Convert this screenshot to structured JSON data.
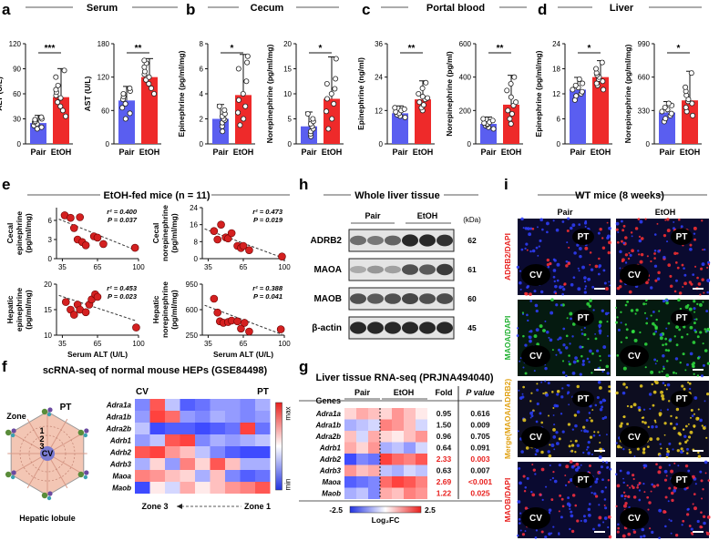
{
  "colors": {
    "pair": "#5a5ef0",
    "etoh": "#ee2a2a",
    "dot": "#d42020"
  },
  "panels": {
    "a": {
      "letter": "a",
      "title": "Serum"
    },
    "b": {
      "letter": "b",
      "title": "Cecum"
    },
    "c": {
      "letter": "c",
      "title": "Portal blood"
    },
    "d": {
      "letter": "d",
      "title": "Liver"
    },
    "e": {
      "letter": "e",
      "title": "EtOH-fed mice (n = 11)"
    },
    "f": {
      "letter": "f",
      "title": "scRNA-seq of normal mouse HEPs (GSE84498)",
      "lobule_label": "Hepatic lobule",
      "zone_label": "Zone",
      "pt": "PT",
      "cv": "CV",
      "zone_nums": [
        "1",
        "2",
        "3"
      ],
      "zone3": "Zone 3",
      "zone1": "Zone 1",
      "max": "max",
      "min": "min"
    },
    "g": {
      "letter": "g",
      "title": "Liver tissue RNA-seq (PRJNA494040)",
      "h_genes": "Genes",
      "h_pair": "Pair",
      "h_etoh": "EtOH",
      "h_fold": "Fold",
      "h_p": "P value",
      "cb_min": "-2.5",
      "cb_max": "2.5",
      "cb_label": "Log₂FC"
    },
    "h": {
      "letter": "h",
      "title": "Whole liver tissue",
      "pair": "Pair",
      "etoh": "EtOH",
      "kda": "(kDa)"
    },
    "i": {
      "letter": "i",
      "title": "WT mice (8 weeks)",
      "pair": "Pair",
      "etoh": "EtOH",
      "pt": "PT",
      "cv": "CV"
    }
  },
  "chart_data": [
    {
      "id": "a1",
      "type": "bar",
      "categories": [
        "Pair",
        "EtOH"
      ],
      "values": [
        25,
        56
      ],
      "ylabel": "ALT (U/L)",
      "ylim": [
        0,
        120
      ],
      "yticks": [
        0,
        30,
        60,
        90,
        120
      ],
      "sig": "***",
      "points": [
        [
          18,
          20,
          22,
          24,
          26,
          27,
          29,
          30,
          32
        ],
        [
          33,
          40,
          45,
          50,
          55,
          58,
          62,
          65,
          70,
          80,
          88
        ]
      ]
    },
    {
      "id": "a2",
      "type": "bar",
      "categories": [
        "Pair",
        "EtOH"
      ],
      "values": [
        78,
        120
      ],
      "ylabel": "AST (U/L)",
      "ylim": [
        0,
        180
      ],
      "yticks": [
        0,
        60,
        120,
        180
      ],
      "sig": "**",
      "points": [
        [
          45,
          55,
          65,
          72,
          80,
          85,
          90,
          95,
          100
        ],
        [
          90,
          100,
          108,
          115,
          120,
          125,
          130,
          138,
          145,
          150
        ]
      ]
    },
    {
      "id": "b1",
      "type": "bar",
      "categories": [
        "Pair",
        "EtOH"
      ],
      "values": [
        2.0,
        3.9
      ],
      "ylabel": "Epinephrine (pg/ml/mg)",
      "ylim": [
        0,
        8
      ],
      "yticks": [
        0,
        2,
        4,
        6,
        8
      ],
      "sig": "*",
      "points": [
        [
          1.0,
          1.4,
          1.7,
          1.9,
          2.0,
          2.2,
          2.4,
          2.7,
          3.0
        ],
        [
          1.5,
          2.0,
          2.5,
          3.0,
          3.5,
          4.0,
          5.0,
          6.0,
          6.5,
          7.0
        ]
      ]
    },
    {
      "id": "b2",
      "type": "bar",
      "categories": [
        "Pair",
        "EtOH"
      ],
      "values": [
        3.5,
        9.0
      ],
      "ylabel": "Norepinephrine (pg/ml/mg)",
      "ylim": [
        0,
        20
      ],
      "yticks": [
        0,
        5,
        10,
        15,
        20
      ],
      "sig": "*",
      "points": [
        [
          1.5,
          2.0,
          2.5,
          3.0,
          3.5,
          4.0,
          4.5,
          5.0,
          6.0
        ],
        [
          3.0,
          5.0,
          6.5,
          8.0,
          9.0,
          10.0,
          11.0,
          12.0,
          13.0,
          17.0
        ]
      ]
    },
    {
      "id": "c1",
      "type": "bar",
      "categories": [
        "Pair",
        "EtOH"
      ],
      "values": [
        11,
        16
      ],
      "ylabel": "Epinephrine (ng/ml)",
      "ylim": [
        0,
        36
      ],
      "yticks": [
        0,
        12,
        24,
        36
      ],
      "sig": "**",
      "points": [
        [
          9.5,
          10,
          10.5,
          11,
          11,
          11.5,
          12,
          12.5,
          13
        ],
        [
          12,
          13,
          14,
          15,
          16,
          16.5,
          17,
          18,
          20,
          22
        ]
      ]
    },
    {
      "id": "c2",
      "type": "bar",
      "categories": [
        "Pair",
        "EtOH"
      ],
      "values": [
        120,
        235
      ],
      "ylabel": "Norepinephrine (pg/ml)",
      "ylim": [
        0,
        600
      ],
      "yticks": [
        0,
        200,
        400,
        600
      ],
      "sig": "**",
      "points": [
        [
          90,
          100,
          110,
          115,
          120,
          125,
          130,
          140,
          150
        ],
        [
          120,
          150,
          180,
          200,
          230,
          250,
          280,
          320,
          360,
          400
        ]
      ]
    },
    {
      "id": "d1",
      "type": "bar",
      "categories": [
        "Pair",
        "EtOH"
      ],
      "values": [
        13,
        16
      ],
      "ylabel": "Epinephrine (pg/ml/mg)",
      "ylim": [
        0,
        24
      ],
      "yticks": [
        0,
        6,
        12,
        18,
        24
      ],
      "sig": "*",
      "points": [
        [
          10.5,
          11.5,
          12,
          12.5,
          13,
          13.5,
          14,
          14.5,
          15.5
        ],
        [
          13,
          14,
          14.5,
          15,
          15.5,
          16,
          16.5,
          17,
          18,
          19.5
        ]
      ]
    },
    {
      "id": "d2",
      "type": "bar",
      "categories": [
        "Pair",
        "EtOH"
      ],
      "values": [
        310,
        430
      ],
      "ylabel": "Norepinephrine (pg/ml/mg)",
      "ylim": [
        0,
        990
      ],
      "yticks": [
        0,
        330,
        660,
        990
      ],
      "sig": "*",
      "points": [
        [
          220,
          250,
          280,
          300,
          320,
          340,
          360,
          380,
          400
        ],
        [
          280,
          320,
          360,
          400,
          420,
          440,
          480,
          520,
          560,
          700
        ]
      ]
    },
    {
      "id": "e1",
      "type": "scatter",
      "ylabel": "Cecal epinephrine (pg/ml/mg)",
      "xlim": [
        30,
        100
      ],
      "ylim": [
        0,
        8
      ],
      "xticks": [
        35,
        65,
        100
      ],
      "yticks": [
        0,
        3,
        6
      ],
      "stat_r": "r² = 0.400",
      "stat_p": "P = 0.037",
      "points": [
        [
          37,
          6.8
        ],
        [
          42,
          6.4
        ],
        [
          45,
          4.8
        ],
        [
          48,
          3.0
        ],
        [
          50,
          6.5
        ],
        [
          52,
          2.6
        ],
        [
          55,
          2.1
        ],
        [
          62,
          3.5
        ],
        [
          65,
          3.3
        ],
        [
          70,
          2.3
        ],
        [
          97,
          1.7
        ]
      ],
      "fit": [
        [
          32,
          6.2
        ],
        [
          98,
          1.3
        ]
      ]
    },
    {
      "id": "e2",
      "type": "scatter",
      "ylabel": "Cecal norepinephrine (pg/ml/mg)",
      "xlim": [
        30,
        100
      ],
      "ylim": [
        0,
        24
      ],
      "xticks": [
        35,
        65,
        100
      ],
      "yticks": [
        0,
        8,
        16,
        24
      ],
      "stat_r": "r² = 0.473",
      "stat_p": "P = 0.019",
      "points": [
        [
          40,
          13
        ],
        [
          43,
          9
        ],
        [
          46,
          16
        ],
        [
          50,
          10
        ],
        [
          52,
          9.5
        ],
        [
          55,
          12
        ],
        [
          60,
          6
        ],
        [
          63,
          5
        ],
        [
          65,
          6
        ],
        [
          70,
          4
        ],
        [
          98,
          1
        ]
      ],
      "fit": [
        [
          32,
          14
        ],
        [
          98,
          0.5
        ]
      ]
    },
    {
      "id": "e3",
      "type": "scatter",
      "xlabel": "Serum ALT (U/L)",
      "ylabel": "Hepatic epinephrine (pg/ml/mg)",
      "xlim": [
        30,
        100
      ],
      "ylim": [
        10,
        20
      ],
      "xticks": [
        35,
        65,
        100
      ],
      "yticks": [
        10,
        15,
        20
      ],
      "stat_r": "r² = 0.453",
      "stat_p": "P = 0.023",
      "points": [
        [
          38,
          16.5
        ],
        [
          42,
          15.0
        ],
        [
          45,
          14.0
        ],
        [
          48,
          16.0
        ],
        [
          50,
          15.0
        ],
        [
          55,
          14.5
        ],
        [
          58,
          16.0
        ],
        [
          60,
          17.0
        ],
        [
          63,
          18.0
        ],
        [
          65,
          17.5
        ],
        [
          98,
          11.5
        ]
      ],
      "fit": [
        [
          32,
          17.8
        ],
        [
          98,
          12.8
        ]
      ]
    },
    {
      "id": "e4",
      "type": "scatter",
      "xlabel": "Serum ALT (U/L)",
      "ylabel": "Hepatic norepinephrine (pg/ml/mg)",
      "xlim": [
        30,
        100
      ],
      "ylim": [
        250,
        950
      ],
      "xticks": [
        35,
        65,
        100
      ],
      "yticks": [
        250,
        600,
        950
      ],
      "stat_r": "r² = 0.388",
      "stat_p": "P = 0.041",
      "points": [
        [
          40,
          750
        ],
        [
          43,
          560
        ],
        [
          45,
          440
        ],
        [
          48,
          420
        ],
        [
          52,
          430
        ],
        [
          55,
          450
        ],
        [
          60,
          440
        ],
        [
          63,
          340
        ],
        [
          66,
          420
        ],
        [
          70,
          300
        ],
        [
          97,
          330
        ]
      ],
      "fit": [
        [
          32,
          660
        ],
        [
          98,
          260
        ]
      ]
    },
    {
      "id": "f",
      "type": "heatmap",
      "rows": [
        "Adra1a",
        "Adra1b",
        "Adra2b",
        "Adrb1",
        "Adrb2",
        "Adrb3",
        "Maoa",
        "Maob"
      ],
      "col_groups": [
        "CV",
        "PT"
      ],
      "values": [
        [
          -0.6,
          0.8,
          -0.3,
          -0.8,
          -0.7,
          -0.5,
          -0.5,
          -0.6,
          -0.4
        ],
        [
          -0.5,
          0.9,
          0.7,
          -0.5,
          -0.6,
          -0.4,
          -0.5,
          -0.6,
          -0.5
        ],
        [
          -0.3,
          -0.9,
          -0.8,
          -0.8,
          -0.9,
          -0.8,
          -0.7,
          0.9,
          -0.7
        ],
        [
          -0.5,
          -0.3,
          0.8,
          0.9,
          -0.6,
          -0.4,
          -0.5,
          -0.4,
          -0.3
        ],
        [
          0.8,
          0.9,
          0.5,
          0.3,
          -0.3,
          -0.6,
          -0.8,
          -0.9,
          -0.9
        ],
        [
          -0.4,
          0.2,
          -0.5,
          0.6,
          0.2,
          0.8,
          0.3,
          -0.4,
          -0.4
        ],
        [
          0.6,
          0.5,
          0.3,
          0.2,
          -0.4,
          0.3,
          -0.6,
          -0.8,
          -0.7
        ],
        [
          -0.9,
          0.1,
          -0.2,
          0.4,
          0.1,
          0.3,
          0.5,
          0.6,
          0.8
        ]
      ]
    },
    {
      "id": "g",
      "type": "heatmap",
      "rows": [
        {
          "gene": "Adra1a",
          "fold": "0.95",
          "p": "0.616",
          "sig": false
        },
        {
          "gene": "Adra1b",
          "fold": "1.50",
          "p": "0.009",
          "sig": false
        },
        {
          "gene": "Adra2b",
          "fold": "0.96",
          "p": "0.705",
          "sig": false
        },
        {
          "gene": "Adrb1",
          "fold": "0.64",
          "p": "0.091",
          "sig": false
        },
        {
          "gene": "Adrb2",
          "fold": "2.33",
          "p": "0.003",
          "sig": true
        },
        {
          "gene": "Adrb3",
          "fold": "0.63",
          "p": "0.007",
          "sig": false
        },
        {
          "gene": "Maoa",
          "fold": "2.69",
          "p": "<0.001",
          "sig": true
        },
        {
          "gene": "Maob",
          "fold": "1.22",
          "p": "0.025",
          "sig": true
        }
      ],
      "values": [
        [
          0.2,
          0.4,
          0.3,
          0.2,
          0.5,
          0.3,
          0.1
        ],
        [
          -0.4,
          -0.3,
          -0.2,
          0.6,
          0.5,
          0.3,
          -0.2
        ],
        [
          0.3,
          -0.2,
          0.4,
          0.2,
          0.1,
          0.3,
          0.5
        ],
        [
          0.4,
          0.2,
          0.5,
          -0.4,
          -0.3,
          -0.5,
          -0.2
        ],
        [
          -0.9,
          -0.6,
          -0.7,
          0.9,
          0.7,
          0.6,
          0.8
        ],
        [
          0.5,
          0.3,
          0.4,
          -0.3,
          -0.4,
          -0.2,
          -0.3
        ],
        [
          -0.8,
          -0.7,
          -0.6,
          0.7,
          0.9,
          0.8,
          0.6
        ],
        [
          -0.4,
          -0.3,
          -0.6,
          0.4,
          0.3,
          0.6,
          0.5
        ]
      ]
    },
    {
      "id": "h",
      "type": "table",
      "proteins": [
        "ADRB2",
        "MAOA",
        "MAOB",
        "β-actin"
      ],
      "kda": [
        "62",
        "61",
        "60",
        "45"
      ],
      "intensity": [
        [
          0.55,
          0.5,
          0.6,
          0.9,
          0.9,
          0.85
        ],
        [
          0.25,
          0.35,
          0.3,
          0.7,
          0.65,
          0.8
        ],
        [
          0.7,
          0.65,
          0.7,
          0.75,
          0.7,
          0.72
        ],
        [
          0.9,
          0.9,
          0.9,
          0.9,
          0.9,
          0.9
        ]
      ]
    },
    {
      "id": "i",
      "type": "table",
      "stains": [
        "ADRB2/DAPI",
        "MAOA/DAPI",
        "Merge(MAOA/ADRB2)",
        "MAOB/DAPI"
      ]
    }
  ]
}
